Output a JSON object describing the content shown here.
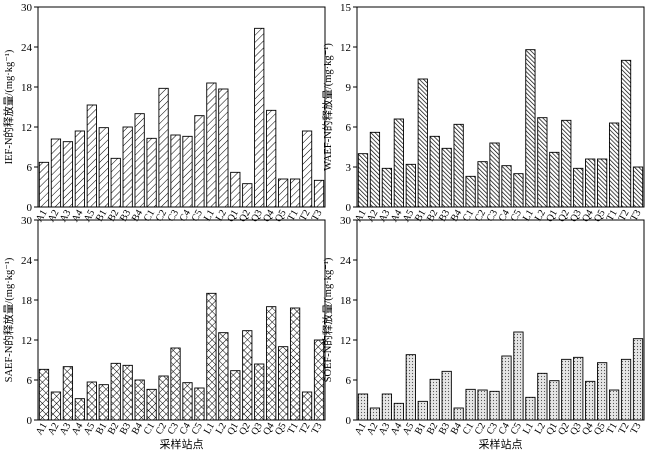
{
  "chart_data": [
    {
      "type": "bar",
      "ylabel": "IEF-N的释放量/(mg·kg⁻¹)",
      "xlabel": "",
      "ylim": [
        0,
        30
      ],
      "yticks": [
        0,
        6,
        12,
        18,
        24,
        30
      ],
      "pattern": "diagonal-hatch-light",
      "categories": [
        "A1",
        "A2",
        "A3",
        "A4",
        "A5",
        "B1",
        "B2",
        "B3",
        "B4",
        "C1",
        "C2",
        "C3",
        "C4",
        "C5",
        "L1",
        "L2",
        "Q1",
        "Q2",
        "Q3",
        "Q4",
        "Q5",
        "T1",
        "T2",
        "T3"
      ],
      "values": [
        6.7,
        10.2,
        9.8,
        11.4,
        15.3,
        11.9,
        7.3,
        12.0,
        14.0,
        10.3,
        17.8,
        10.8,
        10.6,
        13.7,
        18.6,
        17.7,
        5.2,
        3.5,
        26.8,
        14.5,
        4.2,
        4.2,
        11.4,
        4.0
      ]
    },
    {
      "type": "bar",
      "ylabel": "WAEF-N的释放量/(mg·kg⁻¹)",
      "xlabel": "",
      "ylim": [
        0,
        15
      ],
      "yticks": [
        0,
        3,
        6,
        9,
        12,
        15
      ],
      "pattern": "dense-diagonal-hatch",
      "categories": [
        "A1",
        "A2",
        "A3",
        "A4",
        "A5",
        "B1",
        "B2",
        "B3",
        "B4",
        "C1",
        "C2",
        "C3",
        "C4",
        "C5",
        "L1",
        "L2",
        "Q1",
        "Q2",
        "Q3",
        "Q4",
        "Q5",
        "T1",
        "T2",
        "T3"
      ],
      "values": [
        4.0,
        5.6,
        2.9,
        6.6,
        3.2,
        9.6,
        5.3,
        4.4,
        6.2,
        2.3,
        3.4,
        4.8,
        3.1,
        2.5,
        11.8,
        6.7,
        4.1,
        6.5,
        2.9,
        3.6,
        3.6,
        6.3,
        11.0,
        3.0
      ]
    },
    {
      "type": "bar",
      "ylabel": "SAEF-N的释放量/(mg·kg⁻¹)",
      "xlabel": "采样站点",
      "ylim": [
        0,
        30
      ],
      "yticks": [
        0,
        6,
        12,
        18,
        24,
        30
      ],
      "pattern": "cross-hatch",
      "categories": [
        "A1",
        "A2",
        "A3",
        "A4",
        "A5",
        "B1",
        "B2",
        "B3",
        "B4",
        "C1",
        "C2",
        "C3",
        "C4",
        "C5",
        "L1",
        "L2",
        "Q1",
        "Q2",
        "Q3",
        "Q4",
        "Q5",
        "T1",
        "T2",
        "T3"
      ],
      "values": [
        7.6,
        4.2,
        8.0,
        3.2,
        5.7,
        5.3,
        8.5,
        8.2,
        6.0,
        4.6,
        6.6,
        10.8,
        5.6,
        4.8,
        19.0,
        13.1,
        7.4,
        13.4,
        8.4,
        17.0,
        11.0,
        16.8,
        4.2,
        12.0
      ]
    },
    {
      "type": "bar",
      "ylabel": "SOEF-N的释放量/(mg·kg⁻¹)",
      "xlabel": "采样站点",
      "ylim": [
        0,
        30
      ],
      "yticks": [
        0,
        6,
        12,
        18,
        24,
        30
      ],
      "pattern": "dotted",
      "categories": [
        "A1",
        "A2",
        "A3",
        "A4",
        "A5",
        "B1",
        "B2",
        "B3",
        "B4",
        "C1",
        "C2",
        "C3",
        "C4",
        "C5",
        "L1",
        "L2",
        "Q1",
        "Q2",
        "Q3",
        "Q4",
        "Q5",
        "T1",
        "T2",
        "T3"
      ],
      "values": [
        3.9,
        1.8,
        3.9,
        2.5,
        9.8,
        2.8,
        6.1,
        7.3,
        1.8,
        4.6,
        4.5,
        4.3,
        9.6,
        13.2,
        3.4,
        7.0,
        5.9,
        9.1,
        9.4,
        5.8,
        8.6,
        4.5,
        9.1,
        12.2
      ]
    }
  ]
}
